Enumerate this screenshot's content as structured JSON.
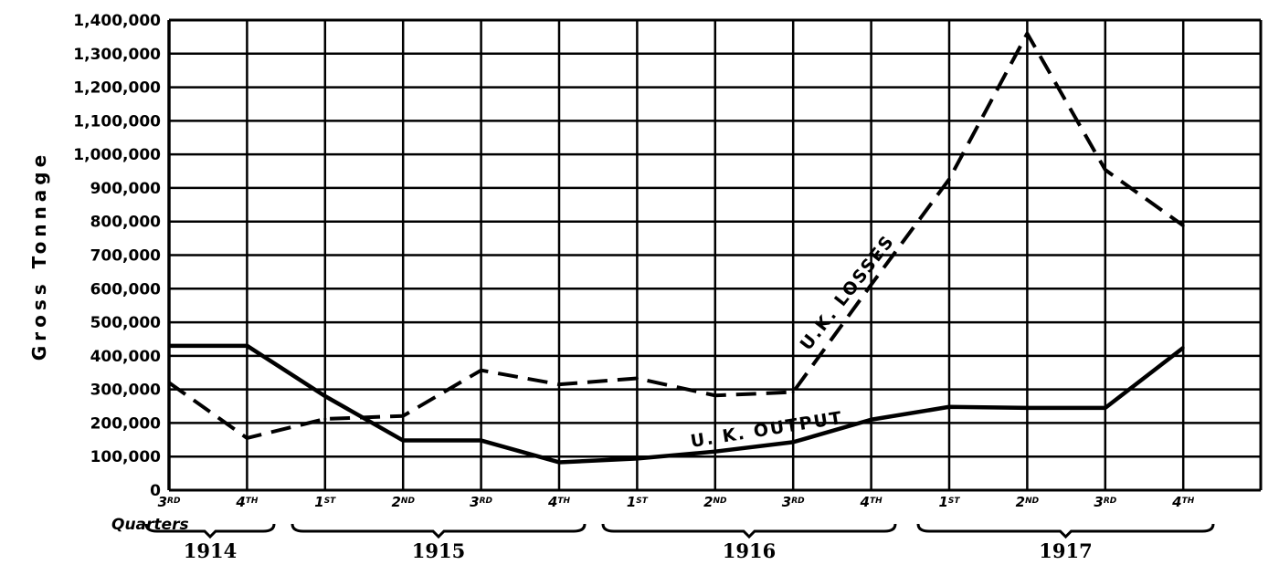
{
  "chart_data": {
    "type": "line",
    "title": "",
    "ylabel": "Gross Tonnage",
    "xlabel": "Quarters",
    "ylim": [
      0,
      1400000
    ],
    "yticks": [
      "0",
      "100,000",
      "200,000",
      "300,000",
      "400,000",
      "500,000",
      "600,000",
      "700,000",
      "800,000",
      "900,000",
      "1,000,000",
      "1,100,000",
      "1,200,000",
      "1,300,000",
      "1,400,000"
    ],
    "grid": true,
    "categories": [
      {
        "num": "3",
        "suf": "RD",
        "year": "1914"
      },
      {
        "num": "4",
        "suf": "TH",
        "year": "1914"
      },
      {
        "num": "1",
        "suf": "ST",
        "year": "1915"
      },
      {
        "num": "2",
        "suf": "ND",
        "year": "1915"
      },
      {
        "num": "3",
        "suf": "RD",
        "year": "1915"
      },
      {
        "num": "4",
        "suf": "TH",
        "year": "1915"
      },
      {
        "num": "1",
        "suf": "ST",
        "year": "1916"
      },
      {
        "num": "2",
        "suf": "ND",
        "year": "1916"
      },
      {
        "num": "3",
        "suf": "RD",
        "year": "1916"
      },
      {
        "num": "4",
        "suf": "TH",
        "year": "1916"
      },
      {
        "num": "1",
        "suf": "ST",
        "year": "1917"
      },
      {
        "num": "2",
        "suf": "ND",
        "year": "1917"
      },
      {
        "num": "3",
        "suf": "RD",
        "year": "1917"
      },
      {
        "num": "4",
        "suf": "TH",
        "year": "1917"
      }
    ],
    "years": [
      "1914",
      "1915",
      "1916",
      "1917"
    ],
    "series": [
      {
        "name": "U.K. LOSSES",
        "style": "dashed",
        "values": [
          320000,
          155000,
          212000,
          221000,
          357000,
          315000,
          333000,
          282000,
          292000,
          612000,
          926000,
          1360000,
          954000,
          788000
        ]
      },
      {
        "name": "U. K. OUTPUT",
        "style": "solid",
        "values": [
          430000,
          430000,
          280000,
          148000,
          148000,
          83000,
          94000,
          115000,
          143000,
          210000,
          248000,
          245000,
          245000,
          424000
        ]
      }
    ],
    "colors": {
      "ink": "#000000",
      "background": "#ffffff"
    }
  }
}
